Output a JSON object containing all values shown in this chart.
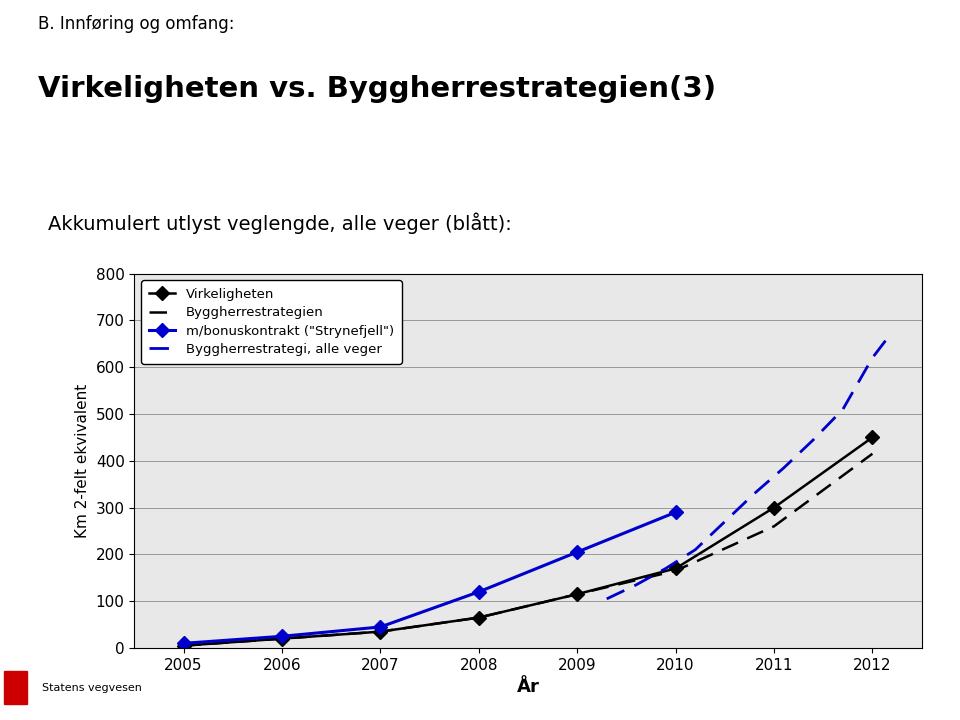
{
  "title_line1": "B. Innføring og omfang:",
  "title_line2": "Virkeligheten vs. Byggherrestrategien(3)",
  "subtitle": "Akkumulert utlyst veglengde, alle veger (blått):",
  "xlabel": "År",
  "ylabel": "Km 2-felt ekvivalent",
  "ylim": [
    0,
    800
  ],
  "yticks": [
    0,
    100,
    200,
    300,
    400,
    500,
    600,
    700,
    800
  ],
  "xlim": [
    2004.5,
    2012.5
  ],
  "xticks": [
    2005,
    2006,
    2007,
    2008,
    2009,
    2010,
    2011,
    2012
  ],
  "bg_color": "#e8e8e8",
  "white": "#ffffff",
  "series": {
    "virkeligheten": {
      "x": [
        2005,
        2006,
        2007,
        2008,
        2009,
        2010,
        2011,
        2012
      ],
      "y": [
        5,
        20,
        35,
        65,
        115,
        170,
        300,
        450
      ],
      "color": "#000000",
      "linestyle": "solid",
      "linewidth": 1.8,
      "marker": "D",
      "markersize": 7,
      "label": "Virkeligheten"
    },
    "byggherrestrategien": {
      "x": [
        2005,
        2006,
        2007,
        2008,
        2009,
        2010,
        2011,
        2012
      ],
      "y": [
        5,
        20,
        35,
        65,
        115,
        165,
        260,
        415
      ],
      "color": "#000000",
      "linestyle": "dashed",
      "linewidth": 1.8,
      "marker": "None",
      "markersize": 0,
      "label": "Byggherrestrategien"
    },
    "strynefjell": {
      "x": [
        2005,
        2006,
        2007,
        2008,
        2009,
        2010
      ],
      "y": [
        10,
        25,
        45,
        120,
        205,
        290
      ],
      "color": "#0000cc",
      "linestyle": "solid",
      "linewidth": 2.2,
      "marker": "D",
      "markersize": 7,
      "label": "m/bonuskontrakt (\"Strynefjell\")"
    },
    "alle_veger": {
      "x": [
        2009.3,
        2009.6,
        2009.9,
        2010.2,
        2010.5,
        2010.8,
        2011.1,
        2011.4,
        2011.7,
        2012.0,
        2012.2
      ],
      "y": [
        105,
        135,
        170,
        210,
        270,
        330,
        385,
        445,
        510,
        620,
        675
      ],
      "color": "#0000cc",
      "linestyle": "dashed",
      "linewidth": 2.0,
      "marker": "None",
      "markersize": 0,
      "label": "Byggherrestrategi, alle veger"
    }
  },
  "legend_loc": "upper left",
  "grid_color": "#999999",
  "header_bg": "#d4d4d4"
}
